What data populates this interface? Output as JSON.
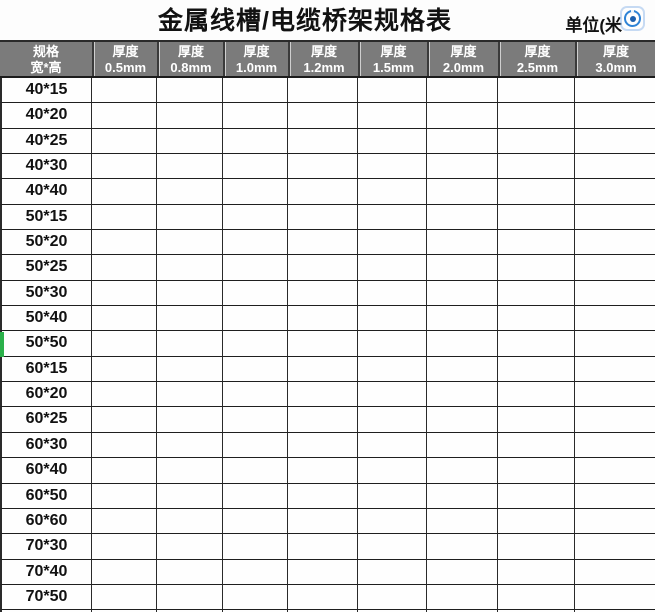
{
  "title": "金属线槽/电缆桥架规格表",
  "unit_label": "单位(米",
  "header": {
    "spec_line1": "规格",
    "spec_line2": "宽*高",
    "thickness_label": "厚度",
    "thickness_values": [
      "0.5mm",
      "0.8mm",
      "1.0mm",
      "1.2mm",
      "1.5mm",
      "2.0mm",
      "2.5mm",
      "3.0mm"
    ]
  },
  "rows": [
    "40*15",
    "40*20",
    "40*25",
    "40*30",
    "40*40",
    "50*15",
    "50*20",
    "50*25",
    "50*30",
    "50*40",
    "50*50",
    "60*15",
    "60*20",
    "60*25",
    "60*30",
    "60*40",
    "60*50",
    "60*60",
    "70*30",
    "70*40",
    "70*50"
  ],
  "marked_row": "50*50",
  "cell_values": [],
  "colors": {
    "header_bg": "#7b7b7b",
    "header_text": "#ffffff",
    "grid_line": "#222222",
    "row_marker_green": "#2ab04a",
    "icon_blue": "#2e83d6"
  },
  "icons": {
    "camera_icon": "camera-icon",
    "corner_fold": "green-corner-fold"
  }
}
